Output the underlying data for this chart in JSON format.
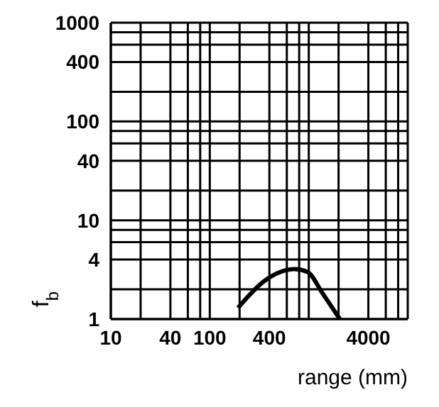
{
  "chart_data": {
    "type": "line",
    "xlabel": "range (mm)",
    "ylabel": "f$_{b}$",
    "series": [
      {
        "color": "#000000",
        "x": [
          193,
          360,
          720,
          968,
          1390,
          2060
        ],
        "values": [
          1.3,
          2.45,
          3.2,
          3.0,
          1.8,
          1.0
        ]
      }
    ],
    "log": "xy",
    "xlim": [
      10,
      10000
    ],
    "ylim": [
      1,
      1000
    ],
    "xticks": [
      10,
      {
        "value": 20,
        "label": null
      },
      40,
      {
        "value": 60,
        "label": null
      },
      {
        "value": 80,
        "label": null
      },
      100,
      {
        "value": 200,
        "label": null
      },
      400,
      {
        "value": 600,
        "label": null
      },
      {
        "value": 800,
        "label": null
      },
      {
        "value": 1000,
        "label": null
      },
      {
        "value": 2000,
        "label": null
      },
      4000,
      {
        "value": 6000,
        "label": null
      },
      {
        "value": 8000,
        "label": null
      },
      {
        "value": 10000,
        "label": null
      }
    ],
    "yticks": [
      1,
      {
        "value": 2,
        "label": null
      },
      4,
      {
        "value": 6,
        "label": null
      },
      {
        "value": 8,
        "label": null
      },
      10,
      {
        "value": 20,
        "label": null
      },
      40,
      {
        "value": 60,
        "label": null
      },
      {
        "value": 80,
        "label": null
      },
      100,
      {
        "value": 200,
        "label": null
      },
      400,
      {
        "value": 600,
        "label": null
      },
      {
        "value": 800,
        "label": null
      },
      1000
    ],
    "grid": true,
    "marker": "none",
    "line_style": "solid"
  }
}
